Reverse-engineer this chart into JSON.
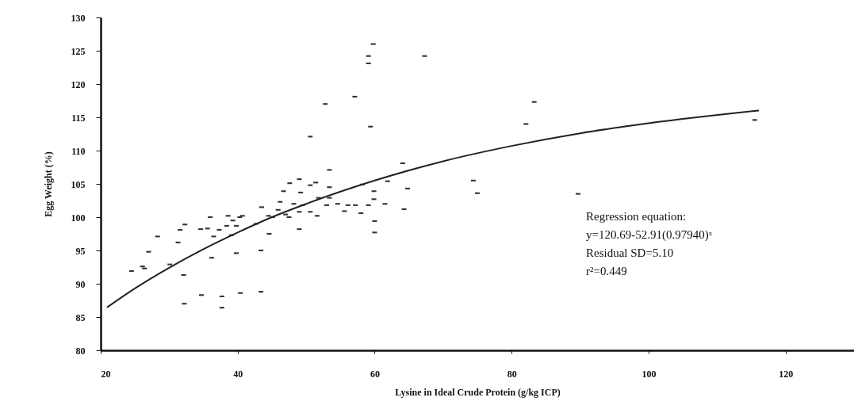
{
  "chart_data": {
    "type": "scatter",
    "xlabel": "Lysine in Ideal Crude Protein (g/kg ICP)",
    "ylabel": "Egg Weight (%)",
    "xlim": [
      20,
      130
    ],
    "xticks": [
      20,
      40,
      60,
      80,
      100,
      120
    ],
    "ylim": [
      80,
      130
    ],
    "yticks": [
      80,
      85,
      90,
      95,
      100,
      105,
      110,
      115,
      120,
      125,
      130
    ],
    "grid": false,
    "marker": "square",
    "annotations": [
      "Regression equation:",
      "y=120.69-52.91(0.97940)ˣ",
      "Residual SD=5.10",
      "r²=0.449"
    ],
    "series": [
      {
        "color": "#333333",
        "x": [
          24.5,
          26.1,
          26.4,
          27.0,
          28.3,
          30.1,
          31.3,
          31.6,
          32.3,
          32.1,
          32.2,
          34.7,
          34.6,
          35.6,
          36.0,
          36.2,
          36.5,
          37.3,
          37.7,
          37.7,
          38.6,
          38.4,
          39.3,
          39.8,
          39.1,
          40.3,
          40.7,
          39.8,
          40.4,
          43.4,
          43.4,
          42.7,
          43.5,
          44.6,
          44.5,
          45.1,
          46.7,
          46.2,
          45.9,
          47.0,
          47.5,
          47.6,
          49.0,
          49.2,
          49.0,
          48.2,
          49.0,
          49.5,
          50.6,
          50.6,
          51.4,
          50.6,
          51.6,
          52.8,
          51.8,
          53.4,
          53.4,
          53.4,
          53.0,
          54.6,
          55.6,
          56.1,
          57.2,
          58.0,
          57.1,
          58.2,
          59.1,
          59.1,
          59.1,
          59.8,
          59.4,
          59.9,
          59.9,
          60.0,
          60.0,
          61.5,
          61.9,
          64.1,
          64.8,
          64.3,
          67.3,
          74.4,
          75.0,
          82.1,
          83.3,
          89.7,
          115.5
        ],
        "values": [
          91.9,
          92.6,
          92.3,
          94.8,
          97.1,
          92.9,
          96.2,
          98.1,
          98.9,
          91.3,
          87.0,
          88.3,
          98.2,
          98.3,
          100.0,
          93.9,
          97.1,
          98.1,
          88.1,
          86.4,
          100.2,
          98.7,
          99.5,
          98.7,
          97.3,
          100.0,
          100.2,
          94.6,
          88.6,
          88.8,
          95.0,
          99.0,
          101.5,
          97.5,
          100.2,
          100.0,
          103.9,
          102.3,
          101.1,
          100.4,
          100.0,
          105.1,
          105.7,
          103.7,
          98.2,
          102.0,
          100.8,
          101.8,
          112.1,
          104.8,
          105.2,
          100.8,
          100.2,
          117.0,
          102.9,
          107.1,
          104.5,
          102.9,
          101.8,
          102.0,
          100.9,
          101.8,
          101.8,
          100.6,
          118.1,
          104.9,
          101.8,
          124.2,
          123.1,
          126.0,
          113.6,
          103.9,
          102.7,
          99.4,
          97.7,
          102.0,
          105.4,
          108.1,
          104.3,
          101.2,
          124.2,
          105.5,
          103.6,
          114.0,
          117.3,
          103.5,
          114.6
        ]
      },
      {
        "type": "line",
        "color": "#222222",
        "marker": "none",
        "x": [
          21,
          25,
          30,
          35,
          40,
          45,
          50,
          60,
          70,
          80,
          90,
          100,
          116
        ],
        "values": [
          86.5,
          89.3,
          92.4,
          95.2,
          97.7,
          100.0,
          102.0,
          105.5,
          108.4,
          110.7,
          112.6,
          114.1,
          116.0
        ]
      }
    ]
  }
}
